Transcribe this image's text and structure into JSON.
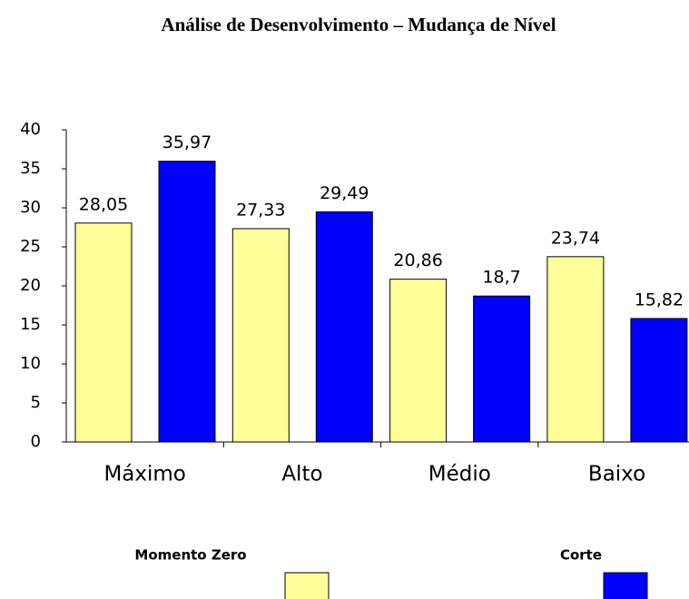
{
  "chart_data": {
    "type": "bar",
    "title": "Análise de Desenvolvimento – Mudança de Nível",
    "categories": [
      "Máximo",
      "Alto",
      "Médio",
      "Baixo"
    ],
    "series": [
      {
        "name": "Momento Zero",
        "color": "#ffff99",
        "values": [
          28.05,
          27.33,
          20.86,
          23.74
        ],
        "value_labels": [
          "28,05",
          "27,33",
          "20,86",
          "23,74"
        ]
      },
      {
        "name": "Corte",
        "color": "#0000ff",
        "values": [
          35.97,
          29.49,
          18.7,
          15.82
        ],
        "value_labels": [
          "35,97",
          "29,49",
          "18,7",
          "15,82"
        ]
      }
    ],
    "ylim": [
      0,
      40
    ],
    "yticks": [
      0,
      5,
      10,
      15,
      20,
      25,
      30,
      35,
      40
    ],
    "grid": false
  }
}
